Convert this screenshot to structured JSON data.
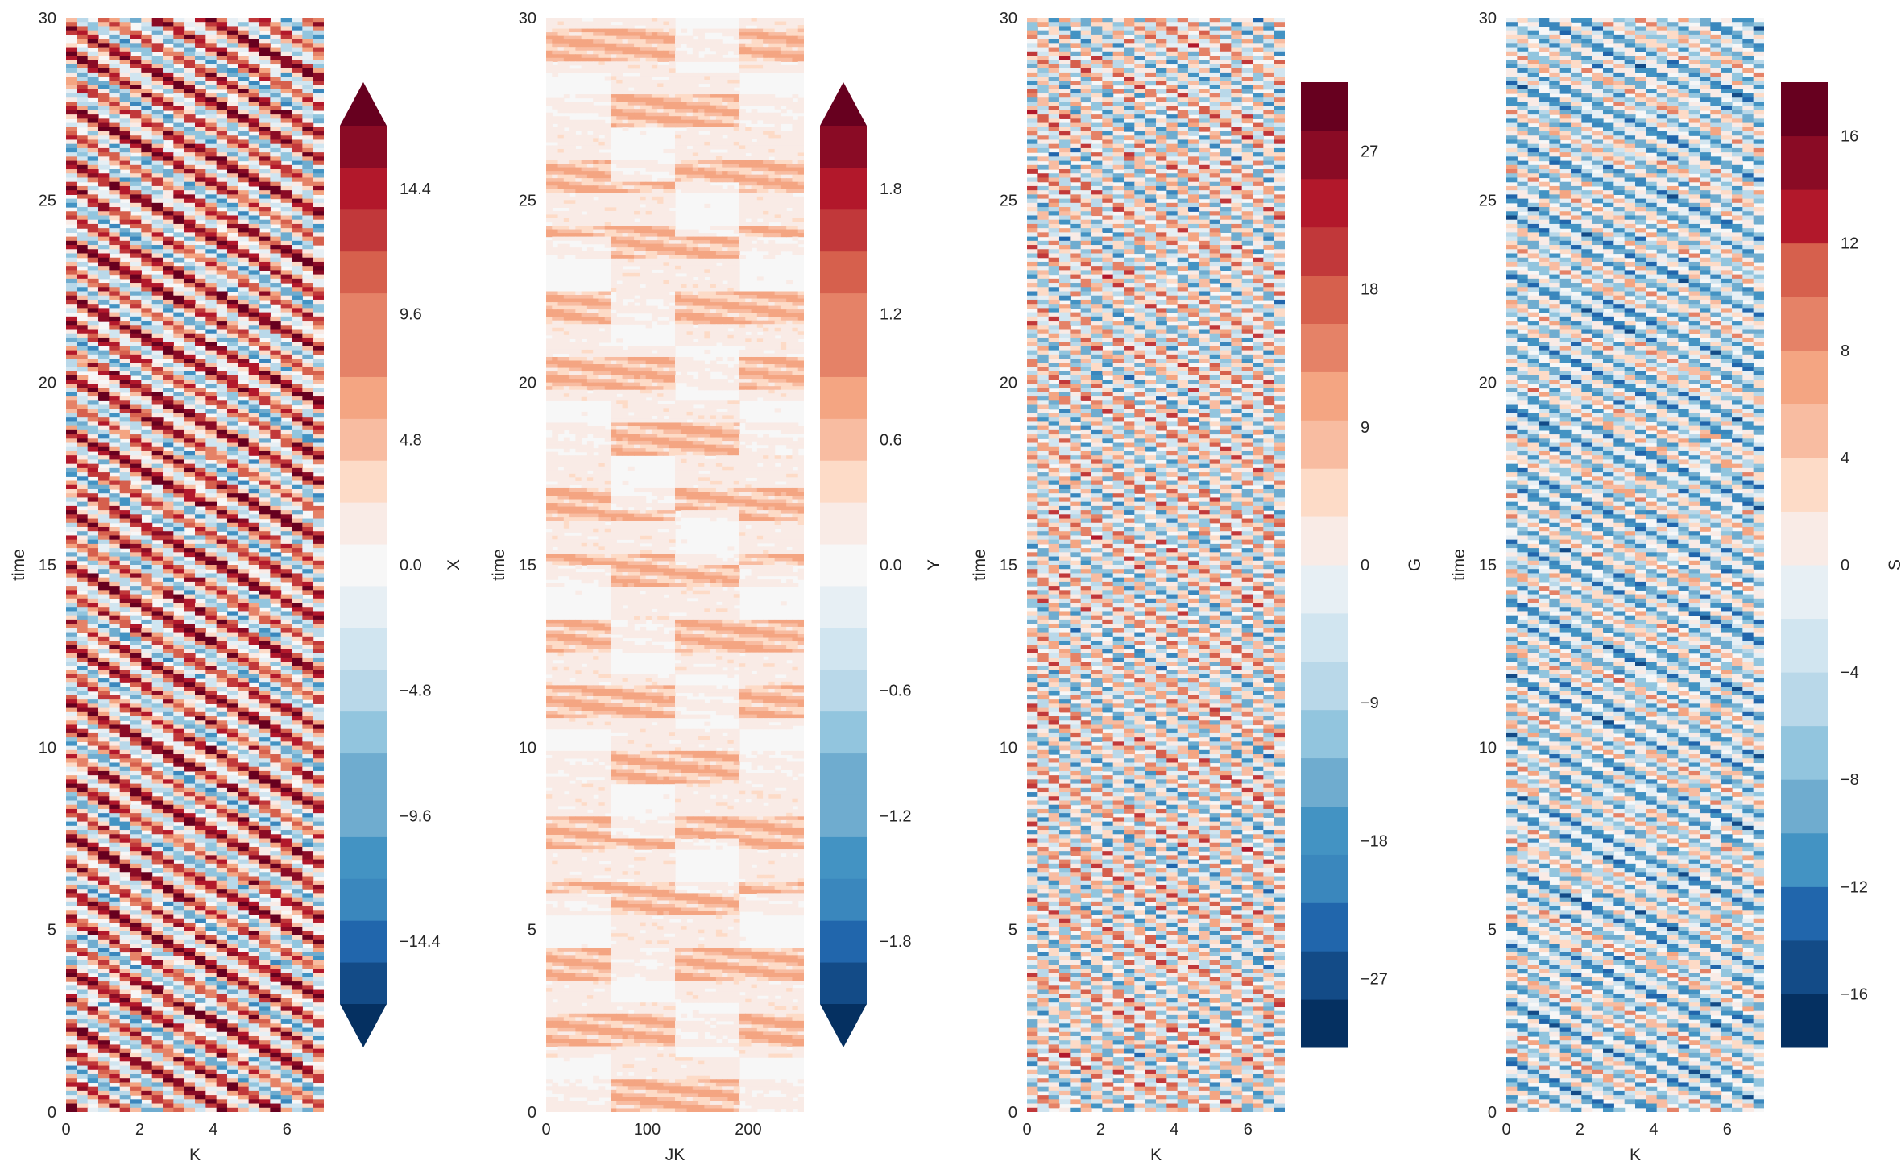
{
  "chart_data": [
    {
      "type": "heatmap",
      "xlabel": "K",
      "ylabel": "time",
      "xlim": [
        0,
        7
      ],
      "ylim": [
        0,
        30
      ],
      "x_ticks": [
        "0",
        "2",
        "4",
        "6"
      ],
      "y_ticks": [
        "0",
        "5",
        "10",
        "15",
        "20",
        "25",
        "30"
      ],
      "colorbar": {
        "label": "X",
        "extend": "both",
        "range": [
          -16.8,
          16.8
        ],
        "levels": 21,
        "ticks": [
          "−14.4",
          "−9.6",
          "−4.8",
          "0.0",
          "4.8",
          "9.6",
          "14.4"
        ],
        "tick_values": [
          -14.4,
          -9.6,
          -4.8,
          0,
          4.8,
          9.6,
          14.4
        ]
      },
      "pattern": {
        "freq_t": 1.35,
        "slope": 0.09,
        "bias": 0.25,
        "amp": 0.62,
        "noise": 0.18,
        "fine": false
      }
    },
    {
      "type": "heatmap",
      "xlabel": "JK",
      "ylabel": "time",
      "xlim": [
        0,
        255
      ],
      "ylim": [
        0,
        30
      ],
      "x_ticks": [
        "0",
        "100",
        "200"
      ],
      "y_ticks": [
        "0",
        "5",
        "10",
        "15",
        "20",
        "25",
        "30"
      ],
      "colorbar": {
        "label": "Y",
        "extend": "both",
        "range": [
          -2.1,
          2.1
        ],
        "levels": 21,
        "ticks": [
          "−1.8",
          "−1.2",
          "−0.6",
          "0.0",
          "0.6",
          "1.2",
          "1.8"
        ],
        "tick_values": [
          -1.8,
          -1.2,
          -0.6,
          0,
          0.6,
          1.2,
          1.8
        ]
      },
      "pattern": {
        "freq_t": 1.35,
        "slope": 0.0,
        "bias": 0.12,
        "amp": 0.22,
        "noise": 0.25,
        "fine": true
      }
    },
    {
      "type": "heatmap",
      "xlabel": "K",
      "ylabel": "time",
      "xlim": [
        0,
        7
      ],
      "ylim": [
        0,
        30
      ],
      "x_ticks": [
        "0",
        "2",
        "4",
        "6"
      ],
      "y_ticks": [
        "0",
        "5",
        "10",
        "15",
        "20",
        "25",
        "30"
      ],
      "colorbar": {
        "label": "G",
        "extend": "neither",
        "range": [
          -31.5,
          31.5
        ],
        "levels": 20,
        "ticks": [
          "−27",
          "−18",
          "−9",
          "0",
          "9",
          "18",
          "27"
        ],
        "tick_values": [
          -27,
          -18,
          -9,
          0,
          9,
          18,
          27
        ]
      },
      "pattern": {
        "freq_t": 1.9,
        "slope": 0.11,
        "bias": 0.0,
        "amp": 0.48,
        "noise": 0.15,
        "fine": false
      }
    },
    {
      "type": "heatmap",
      "xlabel": "K",
      "ylabel": "time",
      "xlim": [
        0,
        7
      ],
      "ylim": [
        0,
        30
      ],
      "x_ticks": [
        "0",
        "2",
        "4",
        "6"
      ],
      "y_ticks": [
        "0",
        "5",
        "10",
        "15",
        "20",
        "25",
        "30"
      ],
      "colorbar": {
        "label": "S",
        "extend": "neither",
        "range": [
          -18,
          18
        ],
        "levels": 18,
        "ticks": [
          "−16",
          "−12",
          "−8",
          "−4",
          "0",
          "4",
          "8",
          "12",
          "16"
        ],
        "tick_values": [
          -16,
          -12,
          -8,
          -4,
          0,
          4,
          8,
          12,
          16
        ]
      },
      "pattern": {
        "freq_t": 1.9,
        "slope": 0.08,
        "bias": -0.18,
        "amp": 0.45,
        "noise": 0.15,
        "fine": false
      }
    }
  ],
  "colors": {
    "palette": [
      "#053061",
      "#134b87",
      "#2166ac",
      "#3a87bd",
      "#4393c3",
      "#6faccf",
      "#92c5de",
      "#b9d8e9",
      "#d1e5f0",
      "#e7eff4",
      "#f7f7f7",
      "#f9ebe6",
      "#fddbc7",
      "#f8bca1",
      "#f4a582",
      "#e58267",
      "#d6604d",
      "#c1383a",
      "#b2182b",
      "#8a0b25",
      "#67001f"
    ],
    "axis_background": "#ffffff",
    "text": "#262626"
  }
}
